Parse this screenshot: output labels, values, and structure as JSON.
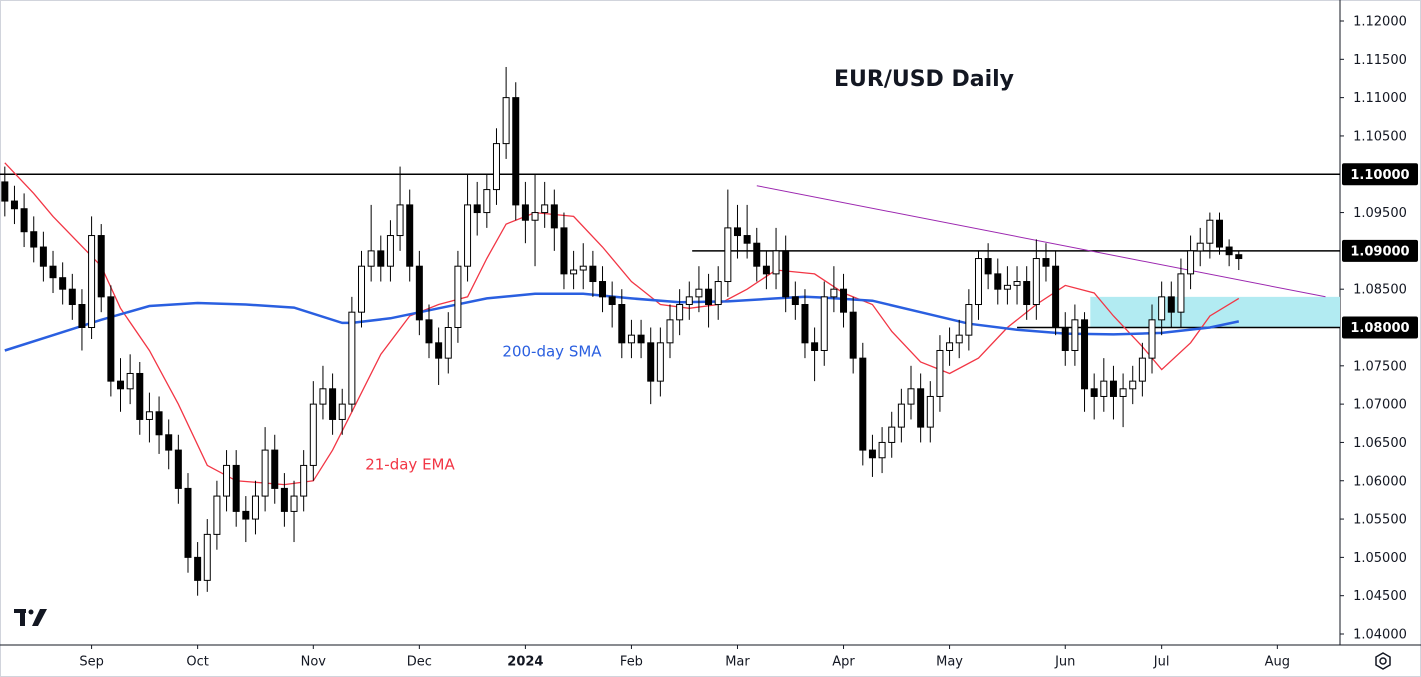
{
  "chart_data": {
    "type": "candlestick",
    "title": "EUR/USD Daily",
    "xlim": [
      -0.5,
      138.5
    ],
    "xticks": [
      {
        "value": 9,
        "label": "Sep"
      },
      {
        "value": 20,
        "label": "Oct"
      },
      {
        "value": 32,
        "label": "Nov"
      },
      {
        "value": 43,
        "label": "Dec"
      },
      {
        "value": 54,
        "label": "2024",
        "bold": true
      },
      {
        "value": 65,
        "label": "Feb"
      },
      {
        "value": 76,
        "label": "Mar"
      },
      {
        "value": 87,
        "label": "Apr"
      },
      {
        "value": 98,
        "label": "May"
      },
      {
        "value": 110,
        "label": "Jun"
      },
      {
        "value": 120,
        "label": "Jul"
      },
      {
        "value": 132,
        "label": "Aug"
      }
    ],
    "ylim": [
      1.04,
      1.12
    ],
    "yticks": [
      {
        "value": 1.04,
        "label": "1.04000"
      },
      {
        "value": 1.045,
        "label": "1.04500"
      },
      {
        "value": 1.05,
        "label": "1.05000"
      },
      {
        "value": 1.055,
        "label": "1.05500"
      },
      {
        "value": 1.06,
        "label": "1.06000"
      },
      {
        "value": 1.065,
        "label": "1.06500"
      },
      {
        "value": 1.07,
        "label": "1.07000"
      },
      {
        "value": 1.075,
        "label": "1.07500"
      },
      {
        "value": 1.085,
        "label": "1.08500"
      },
      {
        "value": 1.095,
        "label": "1.09500"
      },
      {
        "value": 1.105,
        "label": "1.10500"
      },
      {
        "value": 1.11,
        "label": "1.11000"
      },
      {
        "value": 1.115,
        "label": "1.11500"
      },
      {
        "value": 1.12,
        "label": "1.12000"
      }
    ],
    "up_color": "#ffffff",
    "down_color": "#000000",
    "ohlc": [
      [
        1.099,
        1.101,
        1.0945,
        1.0965
      ],
      [
        1.0965,
        1.0985,
        1.0935,
        1.0955
      ],
      [
        1.0955,
        1.0975,
        1.0905,
        1.0925
      ],
      [
        1.0925,
        1.0945,
        1.0885,
        1.0905
      ],
      [
        1.0905,
        1.0925,
        1.086,
        1.088
      ],
      [
        1.088,
        1.09,
        1.0845,
        1.0865
      ],
      [
        1.0865,
        1.0885,
        1.083,
        1.085
      ],
      [
        1.085,
        1.087,
        1.081,
        1.083
      ],
      [
        1.083,
        1.085,
        1.077,
        1.08
      ],
      [
        1.08,
        1.0945,
        1.0785,
        1.092
      ],
      [
        1.092,
        1.0935,
        1.082,
        1.084
      ],
      [
        1.084,
        1.0855,
        1.071,
        1.073
      ],
      [
        1.073,
        1.076,
        1.069,
        1.072
      ],
      [
        1.072,
        1.0765,
        1.07,
        1.074
      ],
      [
        1.074,
        1.0755,
        1.066,
        1.068
      ],
      [
        1.068,
        1.0715,
        1.065,
        1.069
      ],
      [
        1.069,
        1.071,
        1.0635,
        1.066
      ],
      [
        1.066,
        1.068,
        1.0615,
        1.064
      ],
      [
        1.064,
        1.066,
        1.057,
        1.059
      ],
      [
        1.059,
        1.061,
        1.048,
        1.05
      ],
      [
        1.05,
        1.052,
        1.045,
        1.047
      ],
      [
        1.047,
        1.055,
        1.0455,
        1.053
      ],
      [
        1.053,
        1.06,
        1.051,
        1.058
      ],
      [
        1.058,
        1.064,
        1.056,
        1.062
      ],
      [
        1.062,
        1.064,
        1.054,
        1.056
      ],
      [
        1.056,
        1.058,
        1.052,
        1.055
      ],
      [
        1.055,
        1.06,
        1.053,
        1.058
      ],
      [
        1.058,
        1.067,
        1.056,
        1.064
      ],
      [
        1.064,
        1.066,
        1.057,
        1.059
      ],
      [
        1.059,
        1.061,
        1.054,
        1.056
      ],
      [
        1.056,
        1.06,
        1.052,
        1.058
      ],
      [
        1.058,
        1.064,
        1.056,
        1.062
      ],
      [
        1.062,
        1.073,
        1.06,
        1.07
      ],
      [
        1.07,
        1.075,
        1.068,
        1.072
      ],
      [
        1.072,
        1.074,
        1.066,
        1.068
      ],
      [
        1.068,
        1.072,
        1.066,
        1.07
      ],
      [
        1.07,
        1.084,
        1.069,
        1.082
      ],
      [
        1.082,
        1.09,
        1.08,
        1.088
      ],
      [
        1.088,
        1.096,
        1.086,
        1.09
      ],
      [
        1.09,
        1.092,
        1.086,
        1.088
      ],
      [
        1.088,
        1.094,
        1.086,
        1.092
      ],
      [
        1.092,
        1.101,
        1.09,
        1.096
      ],
      [
        1.096,
        1.098,
        1.086,
        1.088
      ],
      [
        1.088,
        1.09,
        1.079,
        1.081
      ],
      [
        1.081,
        1.083,
        1.076,
        1.078
      ],
      [
        1.078,
        1.08,
        1.0725,
        1.076
      ],
      [
        1.076,
        1.082,
        1.074,
        1.08
      ],
      [
        1.08,
        1.09,
        1.078,
        1.088
      ],
      [
        1.088,
        1.1,
        1.086,
        1.096
      ],
      [
        1.096,
        1.099,
        1.092,
        1.095
      ],
      [
        1.095,
        1.1,
        1.093,
        1.098
      ],
      [
        1.098,
        1.106,
        1.096,
        1.104
      ],
      [
        1.104,
        1.114,
        1.102,
        1.11
      ],
      [
        1.11,
        1.112,
        1.094,
        1.096
      ],
      [
        1.096,
        1.099,
        1.091,
        1.094
      ],
      [
        1.094,
        1.1,
        1.088,
        1.095
      ],
      [
        1.095,
        1.099,
        1.093,
        1.096
      ],
      [
        1.096,
        1.098,
        1.09,
        1.093
      ],
      [
        1.093,
        1.095,
        1.085,
        1.087
      ],
      [
        1.087,
        1.09,
        1.085,
        1.0875
      ],
      [
        1.0875,
        1.091,
        1.085,
        1.088
      ],
      [
        1.088,
        1.09,
        1.084,
        1.086
      ],
      [
        1.086,
        1.088,
        1.082,
        1.084
      ],
      [
        1.084,
        1.086,
        1.08,
        1.083
      ],
      [
        1.083,
        1.085,
        1.076,
        1.078
      ],
      [
        1.078,
        1.081,
        1.076,
        1.079
      ],
      [
        1.079,
        1.081,
        1.076,
        1.078
      ],
      [
        1.078,
        1.08,
        1.07,
        1.073
      ],
      [
        1.073,
        1.08,
        1.071,
        1.078
      ],
      [
        1.078,
        1.083,
        1.076,
        1.081
      ],
      [
        1.081,
        1.085,
        1.079,
        1.083
      ],
      [
        1.083,
        1.086,
        1.081,
        1.084
      ],
      [
        1.084,
        1.088,
        1.082,
        1.085
      ],
      [
        1.085,
        1.087,
        1.08,
        1.083
      ],
      [
        1.083,
        1.088,
        1.081,
        1.086
      ],
      [
        1.086,
        1.098,
        1.084,
        1.093
      ],
      [
        1.093,
        1.096,
        1.089,
        1.092
      ],
      [
        1.092,
        1.096,
        1.089,
        1.091
      ],
      [
        1.091,
        1.093,
        1.086,
        1.088
      ],
      [
        1.088,
        1.09,
        1.085,
        1.087
      ],
      [
        1.087,
        1.093,
        1.085,
        1.09
      ],
      [
        1.09,
        1.092,
        1.082,
        1.084
      ],
      [
        1.084,
        1.086,
        1.081,
        1.083
      ],
      [
        1.083,
        1.085,
        1.076,
        1.078
      ],
      [
        1.078,
        1.08,
        1.073,
        1.077
      ],
      [
        1.077,
        1.086,
        1.075,
        1.084
      ],
      [
        1.084,
        1.088,
        1.082,
        1.085
      ],
      [
        1.085,
        1.087,
        1.08,
        1.082
      ],
      [
        1.082,
        1.084,
        1.074,
        1.076
      ],
      [
        1.076,
        1.078,
        1.062,
        1.064
      ],
      [
        1.064,
        1.066,
        1.0605,
        1.063
      ],
      [
        1.063,
        1.067,
        1.061,
        1.065
      ],
      [
        1.065,
        1.069,
        1.063,
        1.067
      ],
      [
        1.067,
        1.072,
        1.065,
        1.07
      ],
      [
        1.07,
        1.075,
        1.068,
        1.072
      ],
      [
        1.072,
        1.074,
        1.065,
        1.067
      ],
      [
        1.067,
        1.073,
        1.065,
        1.071
      ],
      [
        1.071,
        1.079,
        1.069,
        1.077
      ],
      [
        1.077,
        1.08,
        1.075,
        1.078
      ],
      [
        1.078,
        1.081,
        1.076,
        1.079
      ],
      [
        1.079,
        1.085,
        1.077,
        1.083
      ],
      [
        1.083,
        1.09,
        1.081,
        1.089
      ],
      [
        1.089,
        1.091,
        1.085,
        1.087
      ],
      [
        1.087,
        1.089,
        1.083,
        1.085
      ],
      [
        1.085,
        1.088,
        1.083,
        1.0855
      ],
      [
        1.0855,
        1.088,
        1.083,
        1.086
      ],
      [
        1.086,
        1.088,
        1.081,
        1.083
      ],
      [
        1.083,
        1.0915,
        1.081,
        1.089
      ],
      [
        1.089,
        1.091,
        1.086,
        1.088
      ],
      [
        1.088,
        1.09,
        1.079,
        1.08
      ],
      [
        1.08,
        1.082,
        1.075,
        1.077
      ],
      [
        1.077,
        1.083,
        1.075,
        1.081
      ],
      [
        1.081,
        1.082,
        1.069,
        1.072
      ],
      [
        1.072,
        1.074,
        1.068,
        1.071
      ],
      [
        1.071,
        1.076,
        1.069,
        1.073
      ],
      [
        1.073,
        1.075,
        1.068,
        1.071
      ],
      [
        1.071,
        1.074,
        1.067,
        1.072
      ],
      [
        1.072,
        1.075,
        1.07,
        1.073
      ],
      [
        1.073,
        1.078,
        1.071,
        1.076
      ],
      [
        1.076,
        1.083,
        1.074,
        1.081
      ],
      [
        1.081,
        1.086,
        1.079,
        1.084
      ],
      [
        1.084,
        1.086,
        1.08,
        1.082
      ],
      [
        1.082,
        1.089,
        1.08,
        1.087
      ],
      [
        1.087,
        1.092,
        1.085,
        1.09
      ],
      [
        1.09,
        1.093,
        1.088,
        1.091
      ],
      [
        1.091,
        1.095,
        1.089,
        1.094
      ],
      [
        1.094,
        1.095,
        1.0895,
        1.0905
      ],
      [
        1.0905,
        1.0915,
        1.088,
        1.0895
      ],
      [
        1.0895,
        1.09,
        1.0875,
        1.089
      ]
    ],
    "lines": [
      {
        "name": "21-day EMA",
        "color": "#f23645",
        "width": 1.3,
        "x": [
          0,
          3,
          5,
          10,
          12,
          15,
          18,
          21,
          24,
          29,
          32,
          34,
          36,
          39,
          42,
          45,
          48,
          50,
          52,
          55,
          59,
          62,
          65,
          68,
          71,
          74,
          77,
          80,
          84,
          87,
          90,
          92,
          95,
          98,
          101,
          104,
          107,
          110,
          113,
          115,
          118,
          120,
          123,
          125,
          128
        ],
        "values": [
          1.1015,
          1.0975,
          1.0945,
          1.088,
          1.0825,
          1.077,
          1.07,
          1.062,
          1.06,
          1.0595,
          1.06,
          1.064,
          1.069,
          1.0765,
          1.0815,
          1.083,
          1.084,
          1.089,
          1.0935,
          1.095,
          1.0945,
          1.0905,
          1.086,
          1.083,
          1.0825,
          1.083,
          1.085,
          1.0875,
          1.087,
          1.0845,
          1.083,
          1.0795,
          1.0755,
          1.074,
          1.076,
          1.08,
          1.083,
          1.0855,
          1.0845,
          1.0815,
          1.0775,
          1.0745,
          1.078,
          1.0815,
          1.0838
        ]
      },
      {
        "name": "200-day SMA",
        "color": "#2a5fe0",
        "width": 2.5,
        "x": [
          0,
          5,
          10,
          15,
          20,
          25,
          30,
          35,
          36,
          40,
          45,
          50,
          55,
          60,
          65,
          70,
          75,
          80,
          83,
          85,
          90,
          95,
          100,
          105,
          110,
          115,
          120,
          125,
          128
        ],
        "values": [
          1.077,
          1.079,
          1.081,
          1.0828,
          1.0832,
          1.083,
          1.0826,
          1.0806,
          1.0806,
          1.0812,
          1.0825,
          1.0838,
          1.0844,
          1.0844,
          1.0838,
          1.0833,
          1.0834,
          1.0838,
          1.084,
          1.0839,
          1.0835,
          1.082,
          1.0805,
          1.0797,
          1.0792,
          1.0791,
          1.0793,
          1.08,
          1.0808
        ]
      }
    ],
    "trendline": {
      "color": "#9c27b0",
      "x": [
        78,
        137
      ],
      "values": [
        1.0985,
        1.084
      ]
    },
    "levels": [
      {
        "value": 1.1,
        "label": "1.10000",
        "start": -0.5
      },
      {
        "value": 1.09,
        "label": "1.09000",
        "start": 71.3
      },
      {
        "value": 1.08,
        "label": "1.08000",
        "start": 105
      }
    ],
    "zone": {
      "color": "#b2ebf2",
      "xlim": [
        112.6,
        138.5
      ],
      "ylim": [
        1.08,
        1.084
      ]
    }
  }
}
